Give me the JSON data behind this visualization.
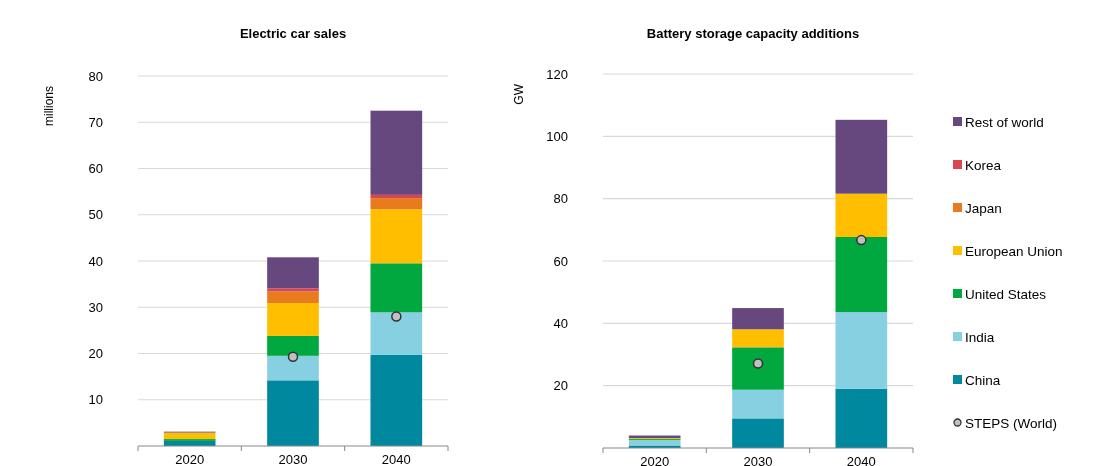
{
  "chart_data": [
    {
      "type": "bar",
      "title": "Electric car sales",
      "ylabel": "millions",
      "stacked": true,
      "categories": [
        "2020",
        "2030",
        "2040"
      ],
      "ylim": [
        0,
        80
      ],
      "yticks": [
        {
          "value": 0,
          "label": null
        },
        10,
        20,
        30,
        40,
        50,
        60,
        70,
        80
      ],
      "grid": "y",
      "legend": false,
      "series": [
        {
          "color": "#00889e",
          "values": [
            1.1,
            14.2,
            19.7
          ]
        },
        {
          "color": "#86d0e2",
          "values": [
            0,
            5.3,
            9.2
          ]
        },
        {
          "color": "#00a83f",
          "values": [
            0.4,
            4.3,
            10.6
          ]
        },
        {
          "color": "#ffbe00",
          "values": [
            1.4,
            7.1,
            11.7
          ]
        },
        {
          "color": "#e87b1e",
          "values": [
            0,
            2.5,
            2.4
          ]
        },
        {
          "color": "#d9474e",
          "values": [
            0,
            0.7,
            0.7
          ]
        },
        {
          "color": "#66487f",
          "values": [
            0.2,
            6.7,
            18.2
          ]
        },
        {
          "type": "scatter",
          "marker": "circle",
          "color": "#c0c0c0",
          "values": [
            null,
            19.3,
            28.0
          ]
        }
      ]
    },
    {
      "type": "bar",
      "title": "Battery storage capacity additions",
      "ylabel": "GW",
      "stacked": true,
      "categories": [
        "2020",
        "2030",
        "2040"
      ],
      "ylim": [
        0,
        120
      ],
      "yticks": [
        {
          "value": 0,
          "label": null
        },
        20,
        40,
        60,
        80,
        100,
        120
      ],
      "grid": "y",
      "legend": "right",
      "series": [
        {
          "name": "China",
          "color": "#00889e",
          "values": [
            0.8,
            9.5,
            19.0
          ]
        },
        {
          "name": "India",
          "color": "#86d0e2",
          "values": [
            1.8,
            9.2,
            24.6
          ]
        },
        {
          "name": "United States",
          "color": "#00a83f",
          "values": [
            0.3,
            13.6,
            24.1
          ]
        },
        {
          "name": "European Union",
          "color": "#ffbe00",
          "values": [
            0.3,
            5.8,
            13.9
          ]
        },
        {
          "name": "Japan",
          "color": "#e87b1e",
          "values": [
            0,
            0,
            0
          ]
        },
        {
          "name": "Korea",
          "color": "#d9474e",
          "values": [
            0,
            0,
            0
          ]
        },
        {
          "name": "Rest of world",
          "color": "#66487f",
          "values": [
            0.8,
            6.8,
            23.7
          ]
        },
        {
          "name": "STEPS (World)",
          "type": "scatter",
          "marker": "circle",
          "color": "#c0c0c0",
          "values": [
            null,
            27.1,
            66.7
          ]
        }
      ]
    }
  ]
}
